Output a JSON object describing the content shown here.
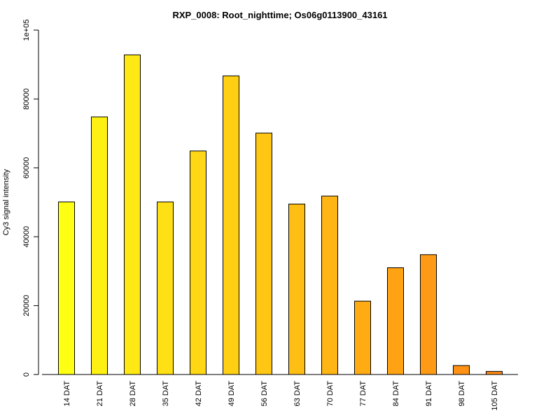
{
  "chart_data": {
    "type": "bar",
    "title": "RXP_0008: Root_nighttime; Os06g0113900_43161",
    "xlabel": "",
    "ylabel": "Cy3 signal intensity",
    "categories": [
      "14 DAT",
      "21 DAT",
      "28 DAT",
      "35 DAT",
      "42 DAT",
      "49 DAT",
      "56 DAT",
      "63 DAT",
      "70 DAT",
      "77 DAT",
      "84 DAT",
      "91 DAT",
      "98 DAT",
      "105 DAT"
    ],
    "values": [
      50100,
      74800,
      92800,
      50100,
      64900,
      86700,
      70100,
      49500,
      51800,
      21300,
      31000,
      34800,
      2600,
      900
    ],
    "colors": [
      "#ffff14",
      "#fff014",
      "#ffe814",
      "#ffe014",
      "#ffd714",
      "#ffcf14",
      "#ffc714",
      "#ffbe14",
      "#ffb514",
      "#ffab14",
      "#ffa214",
      "#ff9a14",
      "#ff9114",
      "#ff8a14"
    ],
    "yticks": [
      0,
      20000,
      40000,
      60000,
      80000,
      100000
    ],
    "ytick_labels": [
      "0",
      "20000",
      "40000",
      "60000",
      "80000",
      "1e+05"
    ],
    "ylim": [
      0,
      100000
    ],
    "grid": false,
    "legend": "none"
  }
}
